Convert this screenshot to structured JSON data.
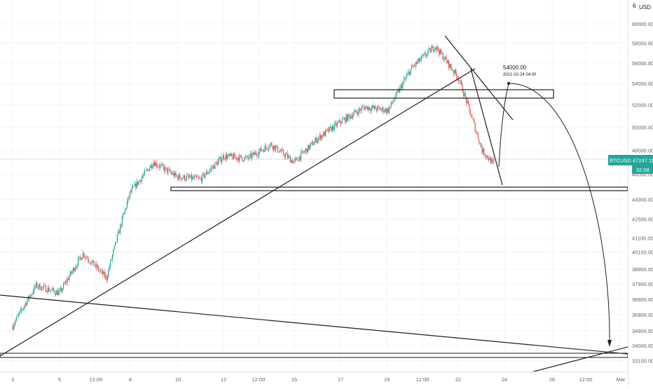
{
  "symbol": "BTCUSD",
  "price_badge": "47247.11",
  "countdown_badge": "32:08",
  "currency_label": "USD",
  "corner_label": "6",
  "annotation": {
    "price_label": "54000.00",
    "time_label": "2021-02-24 04:00"
  },
  "colors": {
    "up": "#26a69a",
    "down": "#ef5350",
    "badge": "#26a69a",
    "drawing": "#1e1e1e",
    "axis_text": "#5d606b"
  },
  "chart_data": {
    "type": "candlestick",
    "symbol": "BTCUSD",
    "y_axis_scale": "log",
    "y_axis_ticks": [
      "60000.00",
      "58000.00",
      "56000.00",
      "54000.00",
      "52000.00",
      "50000.00",
      "48000.00",
      "46000.00",
      "44000.00",
      "42500.00",
      "41100.00",
      "40100.00",
      "38900.00",
      "37900.00",
      "36900.00",
      "35900.00",
      "34900.00",
      "34000.00",
      "33100.00"
    ],
    "x_axis_ticks": [
      "3",
      "5",
      "12:00",
      "8",
      "10",
      "12",
      "12:00",
      "15",
      "17",
      "19",
      "12:00",
      "22",
      "24",
      "26",
      "12:00",
      "Mar"
    ],
    "x_axis_time_range": [
      "2021-02-03",
      "2021-03-01"
    ],
    "last_price": 47247.11,
    "price_path_approx": [
      {
        "time": "2021-02-03",
        "price": 35200
      },
      {
        "time": "2021-02-04",
        "price": 37800
      },
      {
        "time": "2021-02-05",
        "price": 37300
      },
      {
        "time": "2021-02-06",
        "price": 40000
      },
      {
        "time": "2021-02-07",
        "price": 38300
      },
      {
        "time": "2021-02-08",
        "price": 44500
      },
      {
        "time": "2021-02-09",
        "price": 47000
      },
      {
        "time": "2021-02-10",
        "price": 45800
      },
      {
        "time": "2021-02-11",
        "price": 45600
      },
      {
        "time": "2021-02-12",
        "price": 47500
      },
      {
        "time": "2021-02-13",
        "price": 47300
      },
      {
        "time": "2021-02-14",
        "price": 48500
      },
      {
        "time": "2021-02-15",
        "price": 47000
      },
      {
        "time": "2021-02-16",
        "price": 49000
      },
      {
        "time": "2021-02-17",
        "price": 50500
      },
      {
        "time": "2021-02-18",
        "price": 51800
      },
      {
        "time": "2021-02-19",
        "price": 51500
      },
      {
        "time": "2021-02-20",
        "price": 55500
      },
      {
        "time": "2021-02-21",
        "price": 57700
      },
      {
        "time": "2021-02-22",
        "price": 54500
      },
      {
        "time": "2021-02-23",
        "price": 48000
      },
      {
        "time": "2021-02-23 12:00",
        "price": 46800
      }
    ],
    "grid": true,
    "legend": "none"
  }
}
